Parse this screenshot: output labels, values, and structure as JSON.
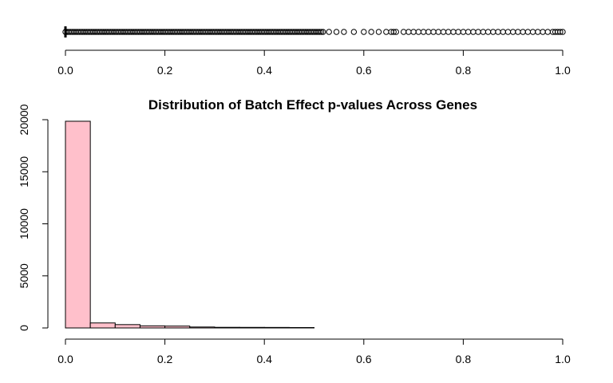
{
  "chart_data": [
    {
      "type": "boxplot",
      "orientation": "horizontal",
      "title": "",
      "xlim": [
        0,
        1
      ],
      "x_ticks": [
        "0.0",
        "0.2",
        "0.4",
        "0.6",
        "0.8",
        "1.0"
      ],
      "x_tick_values": [
        0,
        0.2,
        0.4,
        0.6,
        0.8,
        1.0
      ],
      "median": 0.0,
      "q1": 0.0,
      "q3": 0.0,
      "whisker_low": 0.0,
      "whisker_high": 0.0,
      "outlier_dense_range": [
        0.0,
        0.52
      ],
      "outliers_sparse": [
        0.53,
        0.545,
        0.56,
        0.58,
        0.6,
        0.615,
        0.63,
        0.645,
        0.655,
        0.66,
        0.665,
        0.68,
        0.69,
        0.7,
        0.71,
        0.72,
        0.73,
        0.74,
        0.75,
        0.76,
        0.77,
        0.78,
        0.79,
        0.8,
        0.81,
        0.82,
        0.83,
        0.84,
        0.85,
        0.86,
        0.87,
        0.88,
        0.89,
        0.9,
        0.91,
        0.92,
        0.93,
        0.94,
        0.95,
        0.96,
        0.97,
        0.98,
        0.985,
        0.99,
        0.995,
        1.0
      ],
      "color": "#000000"
    },
    {
      "type": "bar",
      "title": "Distribution of Batch Effect p-values Across Genes",
      "xlabel": "",
      "ylabel": "",
      "xlim": [
        0,
        1
      ],
      "ylim": [
        0,
        20000
      ],
      "x_ticks": [
        "0.0",
        "0.2",
        "0.4",
        "0.6",
        "0.8",
        "1.0"
      ],
      "x_tick_values": [
        0,
        0.2,
        0.4,
        0.6,
        0.8,
        1.0
      ],
      "y_ticks": [
        "0",
        "5000",
        "10000",
        "15000",
        "20000"
      ],
      "y_tick_values": [
        0,
        5000,
        10000,
        15000,
        20000
      ],
      "bin_width": 0.05,
      "bin_edges": [
        0,
        0.05,
        0.1,
        0.15,
        0.2,
        0.25,
        0.3,
        0.35,
        0.4,
        0.45,
        0.5
      ],
      "values": [
        19850,
        480,
        320,
        200,
        180,
        90,
        60,
        55,
        50,
        40
      ],
      "fill_color": "#ffc0cb",
      "border_color": "#000000"
    }
  ]
}
